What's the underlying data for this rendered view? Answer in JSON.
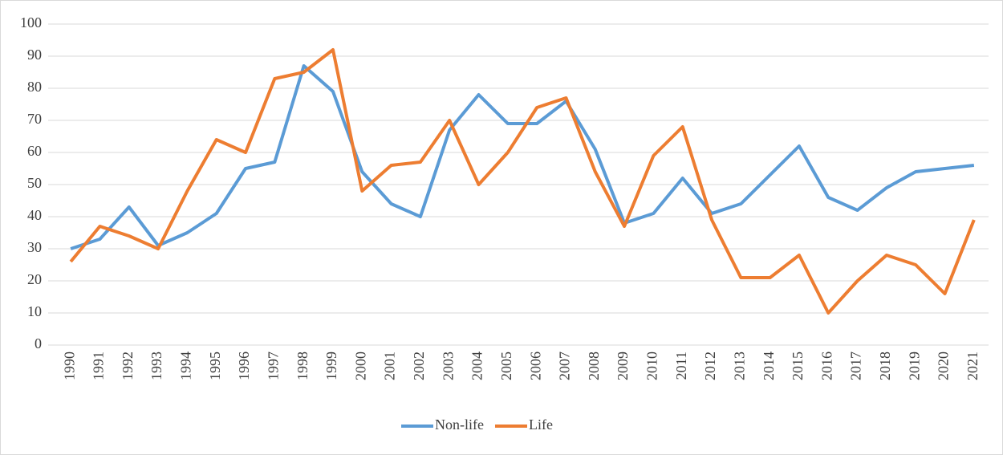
{
  "chart_data": {
    "type": "line",
    "categories": [
      "1990",
      "1991",
      "1992",
      "1993",
      "1994",
      "1995",
      "1996",
      "1997",
      "1998",
      "1999",
      "2000",
      "2001",
      "2002",
      "2003",
      "2004",
      "2005",
      "2006",
      "2007",
      "2008",
      "2009",
      "2010",
      "2011",
      "2012",
      "2013",
      "2014",
      "2015",
      "2016",
      "2017",
      "2018",
      "2019",
      "2020",
      "2021"
    ],
    "series": [
      {
        "name": "Non-life",
        "color": "#5b9bd5",
        "values": [
          30,
          33,
          43,
          31,
          35,
          41,
          55,
          57,
          87,
          79,
          54,
          44,
          40,
          67,
          78,
          69,
          69,
          76,
          61,
          38,
          41,
          52,
          41,
          44,
          53,
          62,
          46,
          42,
          49,
          54,
          55,
          56
        ]
      },
      {
        "name": "Life",
        "color": "#ed7d31",
        "values": [
          26,
          37,
          34,
          30,
          48,
          64,
          60,
          83,
          85,
          92,
          48,
          56,
          57,
          70,
          50,
          60,
          74,
          77,
          54,
          37,
          59,
          68,
          39,
          21,
          21,
          28,
          10,
          20,
          28,
          25,
          16,
          39
        ]
      }
    ],
    "ylim": [
      0,
      100
    ],
    "yticks": [
      0,
      10,
      20,
      30,
      40,
      50,
      60,
      70,
      80,
      90,
      100
    ],
    "grid": true,
    "legend": "bottom"
  }
}
